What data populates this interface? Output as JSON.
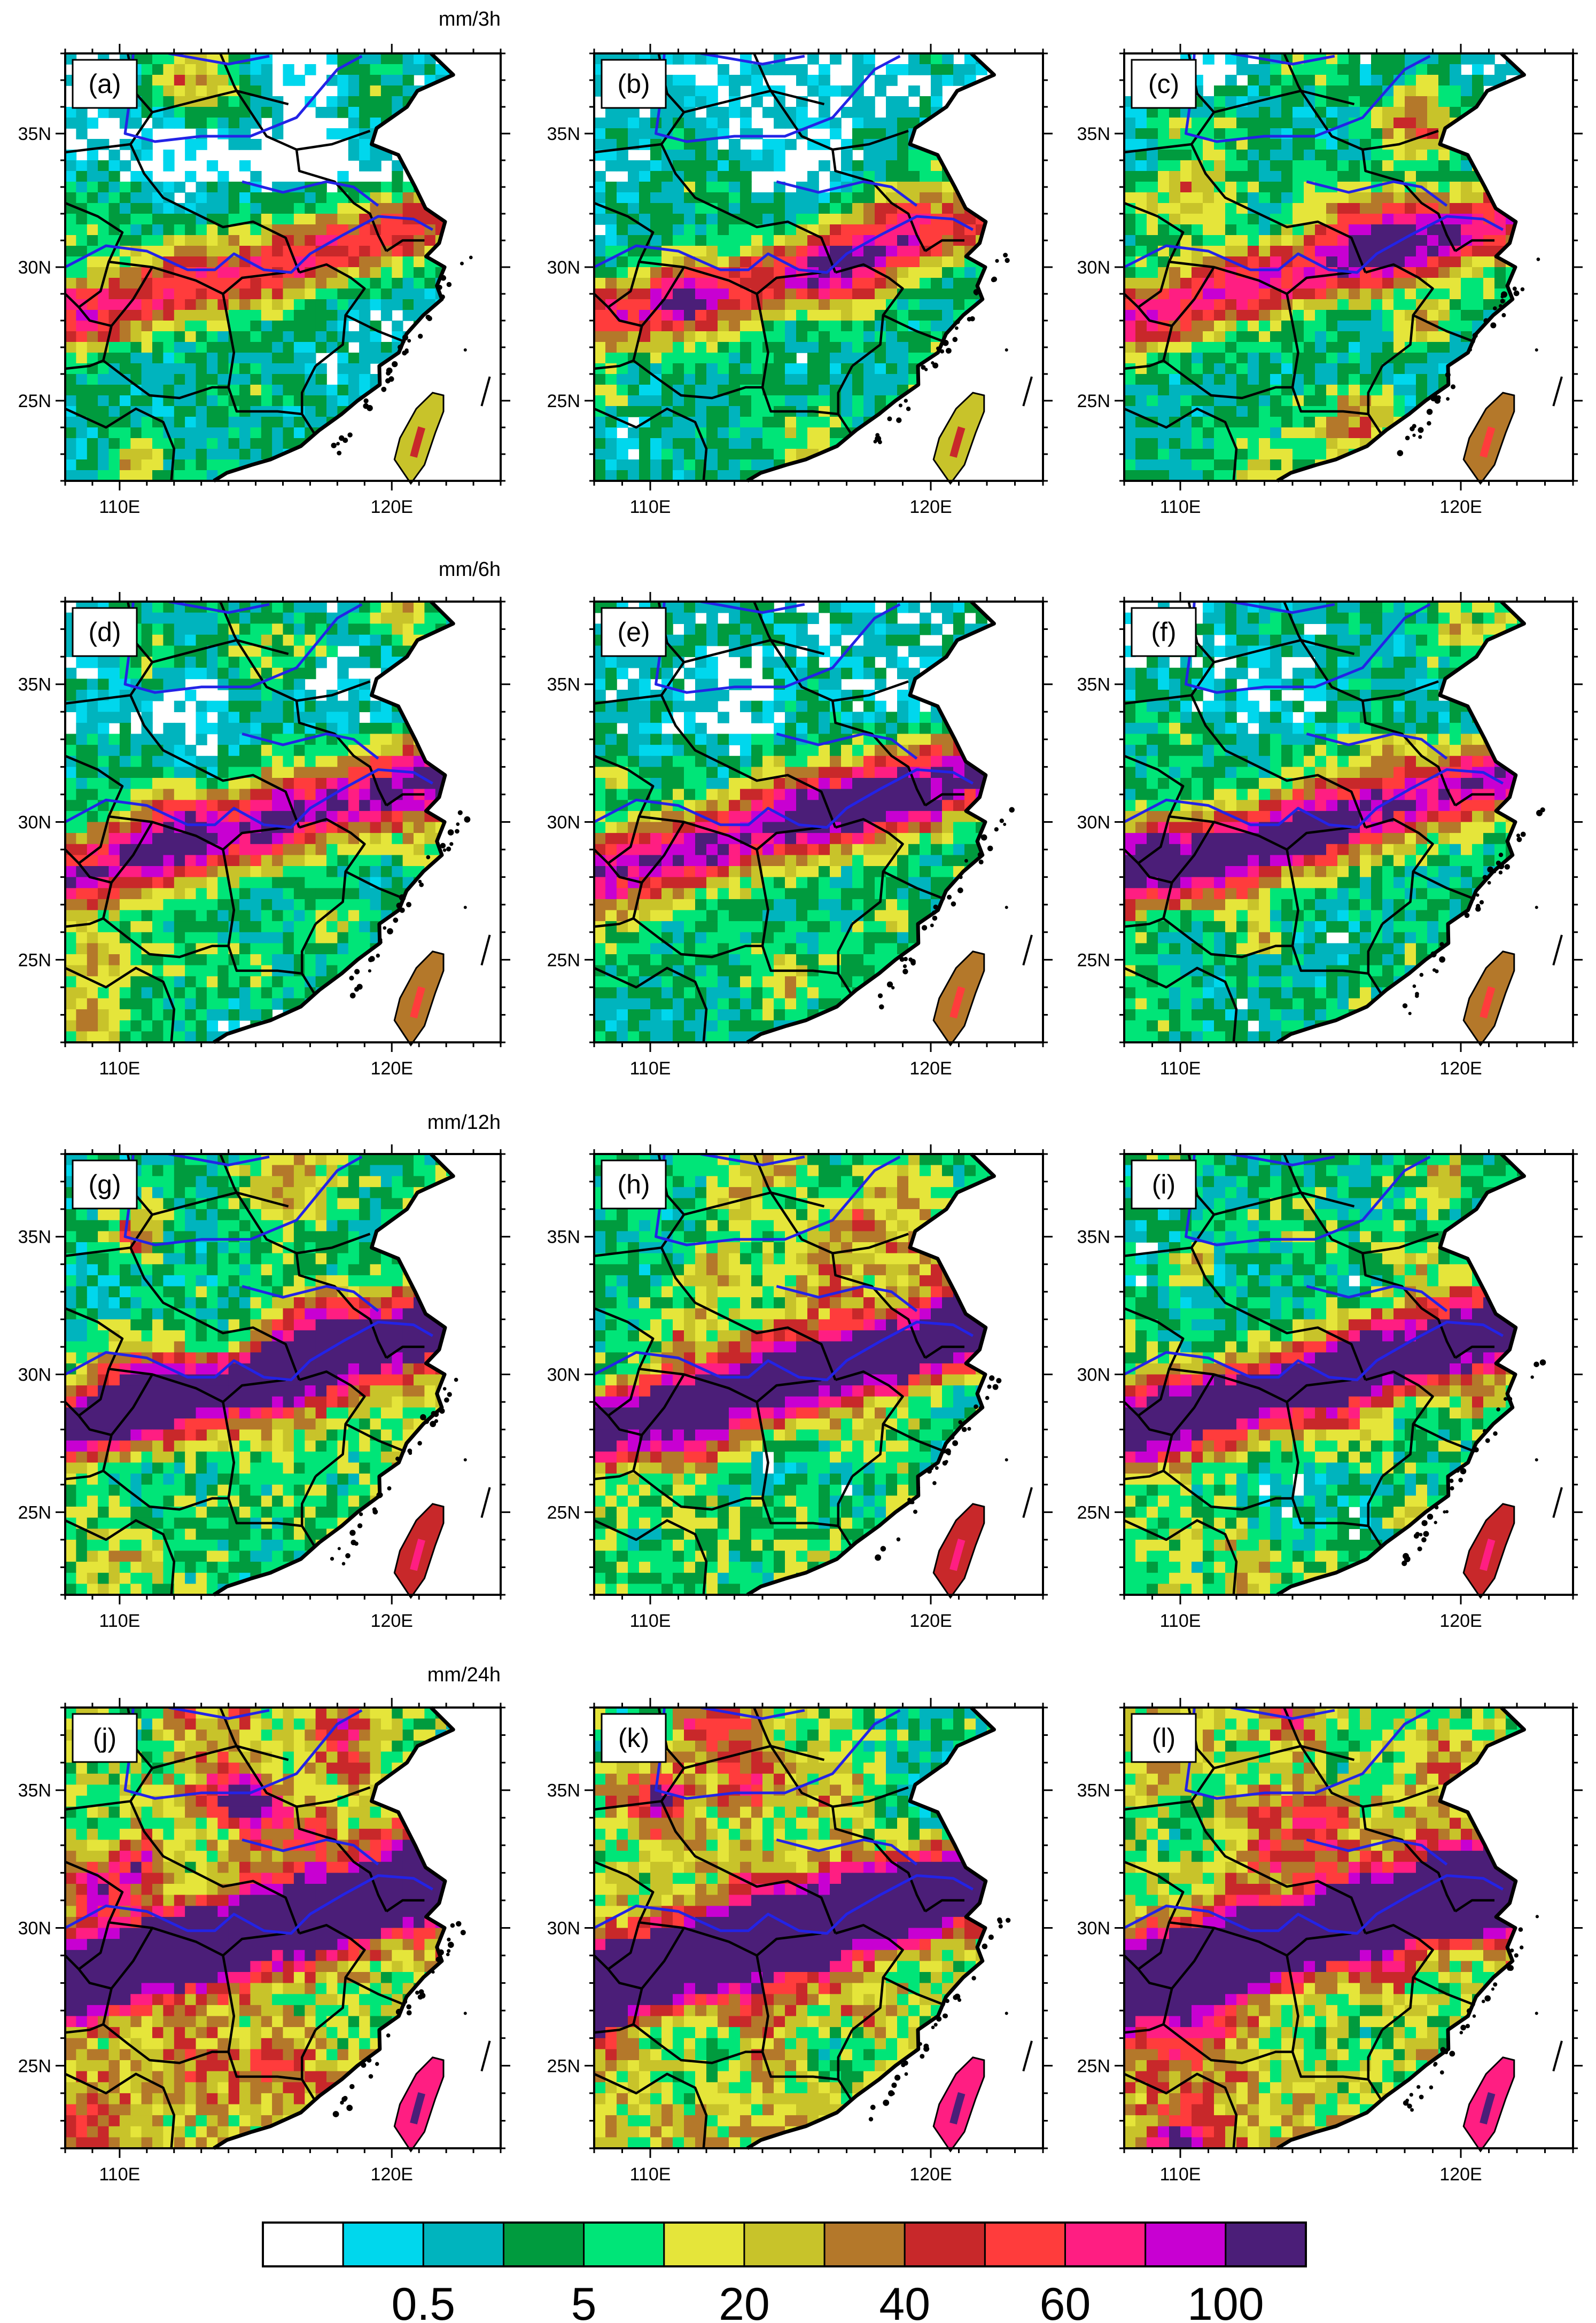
{
  "figure": {
    "row_units": [
      "mm/3h",
      "mm/6h",
      "mm/12h",
      "mm/24h"
    ],
    "panels": [
      {
        "label": "(a)",
        "row": 0,
        "col": 0,
        "intensity": 0.3
      },
      {
        "label": "(b)",
        "row": 0,
        "col": 1,
        "intensity": 0.32
      },
      {
        "label": "(c)",
        "row": 0,
        "col": 2,
        "intensity": 0.38
      },
      {
        "label": "(d)",
        "row": 1,
        "col": 0,
        "intensity": 0.45
      },
      {
        "label": "(e)",
        "row": 1,
        "col": 1,
        "intensity": 0.48
      },
      {
        "label": "(f)",
        "row": 1,
        "col": 2,
        "intensity": 0.52
      },
      {
        "label": "(g)",
        "row": 2,
        "col": 0,
        "intensity": 0.62
      },
      {
        "label": "(h)",
        "row": 2,
        "col": 1,
        "intensity": 0.65
      },
      {
        "label": "(i)",
        "row": 2,
        "col": 2,
        "intensity": 0.68
      },
      {
        "label": "(j)",
        "row": 3,
        "col": 0,
        "intensity": 0.88
      },
      {
        "label": "(k)",
        "row": 3,
        "col": 1,
        "intensity": 0.86
      },
      {
        "label": "(l)",
        "row": 3,
        "col": 2,
        "intensity": 0.9
      }
    ],
    "lat_ticks": [
      {
        "label": "25N",
        "value": 25
      },
      {
        "label": "30N",
        "value": 30
      },
      {
        "label": "35N",
        "value": 35
      }
    ],
    "lon_ticks": [
      {
        "label": "110E",
        "value": 110
      },
      {
        "label": "120E",
        "value": 120
      }
    ],
    "lon_range": [
      108,
      124
    ],
    "lat_range": [
      22,
      38
    ],
    "colorbar": {
      "colors": [
        "#ffffff",
        "#00d7ed",
        "#00b4be",
        "#009b3e",
        "#00e578",
        "#e5e53a",
        "#c8c32a",
        "#b4782a",
        "#c8282a",
        "#ff3c3c",
        "#ff1e82",
        "#c800d2",
        "#4b1e78"
      ],
      "labels": [
        {
          "text": "0.5",
          "boundary": 2
        },
        {
          "text": "5",
          "boundary": 4
        },
        {
          "text": "20",
          "boundary": 6
        },
        {
          "text": "40",
          "boundary": 8
        },
        {
          "text": "60",
          "boundary": 10
        },
        {
          "text": "100",
          "boundary": 12
        }
      ]
    }
  }
}
